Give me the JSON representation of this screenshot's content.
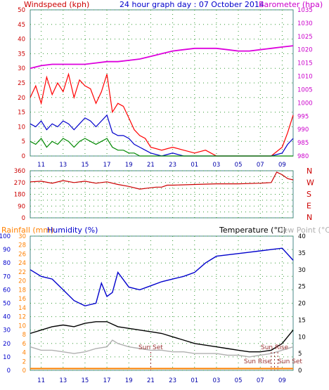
{
  "chart_data": [
    {
      "type": "line",
      "name": "wind-barometer",
      "title": "24 hour graph day : 07 October 2014",
      "ylabel_left": "Windspeed (kph)",
      "ylabel_right": "Barometer (hpa)",
      "ylim_left": [
        0,
        50
      ],
      "ylim_right": [
        980,
        1035
      ],
      "yticks_left": [
        "0",
        "5",
        "10",
        "15",
        "20",
        "25",
        "30",
        "35",
        "40",
        "45",
        "50"
      ],
      "yticks_right": [
        "980",
        "985",
        "990",
        "995",
        "1000",
        "1005",
        "1010",
        "1015",
        "1020",
        "1025",
        "1030",
        "1035"
      ],
      "x_ticks": [
        "11",
        "13",
        "15",
        "17",
        "19",
        "21",
        "23",
        "01",
        "03",
        "05",
        "07",
        "09"
      ],
      "grid": true,
      "colors": {
        "gust": "#ff0000",
        "average": "#0000cc",
        "direction_avg": "#008800",
        "barometer": "#dd00dd",
        "axis_left": "#cc0000",
        "axis_right": "#cc00cc"
      },
      "barometer": [
        [
          9.0,
          1013
        ],
        [
          10.0,
          1014
        ],
        [
          11.0,
          1014.5
        ],
        [
          12.0,
          1014.5
        ],
        [
          13.0,
          1014.5
        ],
        [
          14.0,
          1014.5
        ],
        [
          15.0,
          1015
        ],
        [
          16.0,
          1015.5
        ],
        [
          17.0,
          1015.5
        ],
        [
          18.0,
          1016
        ],
        [
          19.0,
          1016.5
        ],
        [
          20.0,
          1017.5
        ],
        [
          21.0,
          1018.5
        ],
        [
          22.0,
          1019.5
        ],
        [
          23.0,
          1020
        ],
        [
          24.0,
          1020.5
        ],
        [
          25.0,
          1020.5
        ],
        [
          26.0,
          1020.5
        ],
        [
          27.0,
          1020
        ],
        [
          28.0,
          1019.5
        ],
        [
          29.0,
          1019.5
        ],
        [
          30.0,
          1020
        ],
        [
          31.0,
          1020.5
        ],
        [
          32.0,
          1021
        ],
        [
          33.0,
          1021.5
        ]
      ],
      "gust_kph": [
        [
          9.0,
          20
        ],
        [
          9.5,
          24
        ],
        [
          10.0,
          18
        ],
        [
          10.5,
          27
        ],
        [
          11.0,
          21
        ],
        [
          11.5,
          25
        ],
        [
          12.0,
          22
        ],
        [
          12.5,
          28
        ],
        [
          13.0,
          20
        ],
        [
          13.5,
          26
        ],
        [
          14.0,
          24
        ],
        [
          14.5,
          23
        ],
        [
          15.0,
          18
        ],
        [
          15.5,
          22
        ],
        [
          16.0,
          28
        ],
        [
          16.5,
          15
        ],
        [
          17.0,
          18
        ],
        [
          17.5,
          17
        ],
        [
          18.0,
          13
        ],
        [
          18.5,
          9
        ],
        [
          19.0,
          7
        ],
        [
          19.5,
          6
        ],
        [
          20.0,
          3
        ],
        [
          21.0,
          2
        ],
        [
          22.0,
          3
        ],
        [
          23.0,
          2
        ],
        [
          24.0,
          1
        ],
        [
          25.0,
          2
        ],
        [
          26.0,
          0
        ],
        [
          27.0,
          0
        ],
        [
          28.0,
          0
        ],
        [
          29.0,
          0
        ],
        [
          30.0,
          0
        ],
        [
          31.0,
          0
        ],
        [
          32.0,
          3
        ],
        [
          32.5,
          8
        ],
        [
          33.0,
          14
        ]
      ],
      "average_kph": [
        [
          9.0,
          11
        ],
        [
          9.5,
          10
        ],
        [
          10.0,
          12
        ],
        [
          10.5,
          9
        ],
        [
          11.0,
          11
        ],
        [
          11.5,
          10
        ],
        [
          12.0,
          12
        ],
        [
          12.5,
          11
        ],
        [
          13.0,
          9
        ],
        [
          13.5,
          11
        ],
        [
          14.0,
          13
        ],
        [
          14.5,
          12
        ],
        [
          15.0,
          10
        ],
        [
          15.5,
          12
        ],
        [
          16.0,
          14
        ],
        [
          16.5,
          8
        ],
        [
          17.0,
          7
        ],
        [
          17.5,
          7
        ],
        [
          18.0,
          6
        ],
        [
          18.5,
          4
        ],
        [
          19.0,
          3
        ],
        [
          19.5,
          2
        ],
        [
          20.0,
          1
        ],
        [
          21.0,
          0
        ],
        [
          22.0,
          1
        ],
        [
          23.0,
          0
        ],
        [
          24.0,
          0
        ],
        [
          25.0,
          0
        ],
        [
          26.0,
          0
        ],
        [
          27.0,
          0
        ],
        [
          28.0,
          0
        ],
        [
          29.0,
          0
        ],
        [
          30.0,
          0
        ],
        [
          31.0,
          0
        ],
        [
          32.0,
          1
        ],
        [
          32.5,
          4
        ],
        [
          33.0,
          6
        ]
      ],
      "direction_avg_kph": [
        [
          9.0,
          5
        ],
        [
          9.5,
          4
        ],
        [
          10.0,
          6
        ],
        [
          10.5,
          3
        ],
        [
          11.0,
          5
        ],
        [
          11.5,
          4
        ],
        [
          12.0,
          6
        ],
        [
          12.5,
          5
        ],
        [
          13.0,
          3
        ],
        [
          13.5,
          5
        ],
        [
          14.0,
          6
        ],
        [
          14.5,
          5
        ],
        [
          15.0,
          4
        ],
        [
          15.5,
          5
        ],
        [
          16.0,
          6
        ],
        [
          16.5,
          3
        ],
        [
          17.0,
          2
        ],
        [
          17.5,
          2
        ],
        [
          18.0,
          1
        ],
        [
          18.5,
          1
        ],
        [
          19.0,
          0
        ],
        [
          20.0,
          0
        ],
        [
          33.0,
          0
        ]
      ]
    },
    {
      "type": "line",
      "name": "wind-direction",
      "ylim": [
        0,
        360
      ],
      "yticks": [
        "0",
        "45",
        "90",
        "135",
        "180",
        "225",
        "270",
        "315",
        "360"
      ],
      "compass": [
        "N",
        "W",
        "S",
        "E",
        "N"
      ],
      "x_ticks": [
        "11",
        "13",
        "15",
        "17",
        "19",
        "21",
        "23",
        "01",
        "03",
        "05",
        "07",
        "09"
      ],
      "grid": true,
      "color": "#cc0000",
      "direction_deg": [
        [
          9.0,
          275
        ],
        [
          10.0,
          280
        ],
        [
          11.0,
          265
        ],
        [
          12.0,
          285
        ],
        [
          13.0,
          270
        ],
        [
          14.0,
          280
        ],
        [
          15.0,
          265
        ],
        [
          16.0,
          275
        ],
        [
          17.0,
          255
        ],
        [
          18.0,
          240
        ],
        [
          19.0,
          220
        ],
        [
          20.0,
          230
        ],
        [
          20.5,
          235
        ],
        [
          21.0,
          235
        ],
        [
          21.5,
          250
        ],
        [
          22.0,
          250
        ],
        [
          24.0,
          255
        ],
        [
          26.0,
          260
        ],
        [
          28.0,
          260
        ],
        [
          30.0,
          265
        ],
        [
          31.0,
          270
        ],
        [
          31.5,
          350
        ],
        [
          32.0,
          330
        ],
        [
          32.5,
          300
        ],
        [
          33.0,
          290
        ]
      ]
    },
    {
      "type": "line",
      "name": "rain-humidity-temperature",
      "ylabel_rainfall": "Rainfall (mm)",
      "ylabel_humidity": "Humidity (%)",
      "ylabel_temperature": "Temperature (°C)",
      "ylabel_dewpoint": "Dew Point (°C)",
      "ylim_humidity": [
        0,
        100
      ],
      "ylim_rainfall": [
        0,
        30
      ],
      "ylim_temperature": [
        0,
        40
      ],
      "yticks_humidity": [
        "0",
        "10",
        "20",
        "30",
        "40",
        "50",
        "60",
        "70",
        "80",
        "90",
        "100"
      ],
      "yticks_rainfall": [
        "0",
        "2",
        "4",
        "6",
        "8",
        "10",
        "12",
        "14",
        "16",
        "18",
        "20",
        "22",
        "24",
        "26",
        "28",
        "30"
      ],
      "yticks_temperature": [
        "0",
        "5",
        "10",
        "15",
        "20",
        "25",
        "30",
        "35",
        "40"
      ],
      "x_ticks": [
        "11",
        "13",
        "15",
        "17",
        "19",
        "21",
        "23",
        "01",
        "03",
        "05",
        "07",
        "09"
      ],
      "annotations": [
        "Sun Set",
        "Sun Rise",
        "Sun Rise",
        "Sun Set"
      ],
      "grid": true,
      "colors": {
        "humidity": "#0000cc",
        "temperature": "#000000",
        "dewpoint": "#b0b0b0",
        "rainfall": "#ff8000",
        "axis_humidity": "#0000cc",
        "axis_rainfall": "#ff8000",
        "axis_temperature": "#000000",
        "axis_dewpoint": "#b0b0b0"
      },
      "humidity": [
        [
          9.0,
          75
        ],
        [
          10.0,
          70
        ],
        [
          11.0,
          68
        ],
        [
          12.0,
          60
        ],
        [
          13.0,
          52
        ],
        [
          14.0,
          48
        ],
        [
          15.0,
          50
        ],
        [
          15.5,
          65
        ],
        [
          16.0,
          55
        ],
        [
          16.5,
          58
        ],
        [
          17.0,
          73
        ],
        [
          18.0,
          62
        ],
        [
          19.0,
          60
        ],
        [
          20.0,
          63
        ],
        [
          21.0,
          66
        ],
        [
          22.0,
          68
        ],
        [
          23.0,
          70
        ],
        [
          24.0,
          73
        ],
        [
          25.0,
          80
        ],
        [
          26.0,
          85
        ],
        [
          27.0,
          86
        ],
        [
          28.0,
          87
        ],
        [
          29.0,
          88
        ],
        [
          30.0,
          89
        ],
        [
          31.0,
          90
        ],
        [
          32.0,
          91
        ],
        [
          33.0,
          82
        ]
      ],
      "temperature": [
        [
          9.0,
          11
        ],
        [
          10.0,
          12
        ],
        [
          11.0,
          13
        ],
        [
          12.0,
          13.5
        ],
        [
          13.0,
          13
        ],
        [
          14.0,
          14
        ],
        [
          15.0,
          14.5
        ],
        [
          16.0,
          14.5
        ],
        [
          17.0,
          13
        ],
        [
          18.0,
          12.5
        ],
        [
          19.0,
          12
        ],
        [
          20.0,
          11.5
        ],
        [
          21.0,
          11
        ],
        [
          22.0,
          10
        ],
        [
          23.0,
          9
        ],
        [
          24.0,
          8
        ],
        [
          25.0,
          7.5
        ],
        [
          26.0,
          7
        ],
        [
          27.0,
          6.5
        ],
        [
          28.0,
          6
        ],
        [
          29.0,
          5.5
        ],
        [
          30.0,
          5.5
        ],
        [
          31.0,
          6
        ],
        [
          32.0,
          8
        ],
        [
          33.0,
          12
        ]
      ],
      "dewpoint": [
        [
          9.0,
          7
        ],
        [
          10.0,
          6
        ],
        [
          11.0,
          6
        ],
        [
          12.0,
          5.5
        ],
        [
          13.0,
          5
        ],
        [
          14.0,
          5.5
        ],
        [
          15.0,
          6.5
        ],
        [
          16.0,
          7
        ],
        [
          16.5,
          9
        ],
        [
          17.0,
          8
        ],
        [
          18.0,
          7
        ],
        [
          19.0,
          6.5
        ],
        [
          20.0,
          6
        ],
        [
          21.0,
          6
        ],
        [
          22.0,
          5.5
        ],
        [
          23.0,
          5.5
        ],
        [
          24.0,
          5
        ],
        [
          25.0,
          5
        ],
        [
          26.0,
          5
        ],
        [
          27.0,
          4.5
        ],
        [
          28.0,
          4.5
        ],
        [
          29.0,
          4
        ],
        [
          30.0,
          4.5
        ],
        [
          31.0,
          5
        ],
        [
          32.0,
          6
        ],
        [
          33.0,
          7
        ]
      ],
      "rainfall_mm": [
        [
          9.0,
          0.4
        ],
        [
          33.0,
          0.4
        ]
      ]
    }
  ]
}
